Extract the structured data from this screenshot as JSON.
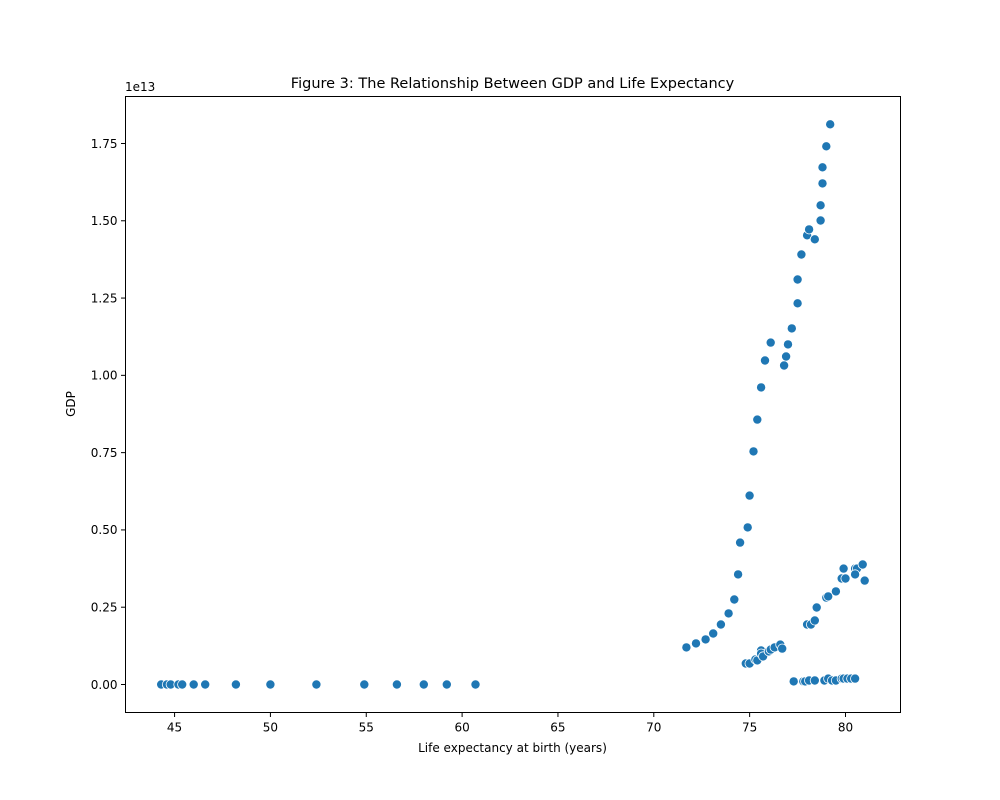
{
  "chart_data": {
    "type": "scatter",
    "title": "Figure 3: The Relationship Between GDP and Life Expectancy",
    "xlabel": "Life expectancy at birth (years)",
    "ylabel": "GDP",
    "y_offset_label": "1e13",
    "y_scale": 10000000000000.0,
    "xlim": [
      42.44,
      82.87
    ],
    "ylim": [
      -0.0906,
      1.902
    ],
    "x_ticks": [
      45,
      50,
      55,
      60,
      65,
      70,
      75,
      80
    ],
    "y_ticks": [
      0.0,
      0.25,
      0.5,
      0.75,
      1.0,
      1.25,
      1.5,
      1.75
    ],
    "y_tick_labels": [
      "0.00",
      "0.25",
      "0.50",
      "0.75",
      "1.00",
      "1.25",
      "1.50",
      "1.75"
    ],
    "grid": false,
    "legend": null,
    "marker_color": "#1f77b4",
    "marker_edge": "#ffffff",
    "points_note": "y values in units of 1e13",
    "points": [
      [
        44.3,
        0.0
      ],
      [
        44.6,
        0.0
      ],
      [
        44.8,
        0.0
      ],
      [
        45.2,
        0.0
      ],
      [
        45.4,
        0.0
      ],
      [
        46.0,
        0.0
      ],
      [
        46.6,
        0.0
      ],
      [
        48.2,
        0.0
      ],
      [
        50.0,
        0.0
      ],
      [
        52.4,
        0.0
      ],
      [
        54.9,
        0.0
      ],
      [
        56.6,
        0.0
      ],
      [
        58.0,
        0.0
      ],
      [
        59.2,
        0.0
      ],
      [
        60.7,
        0.0
      ],
      [
        71.7,
        0.12
      ],
      [
        72.2,
        0.133
      ],
      [
        72.7,
        0.146
      ],
      [
        73.1,
        0.165
      ],
      [
        73.5,
        0.194
      ],
      [
        73.9,
        0.23
      ],
      [
        74.2,
        0.275
      ],
      [
        74.4,
        0.356
      ],
      [
        74.5,
        0.459
      ],
      [
        74.9,
        0.508
      ],
      [
        75.0,
        0.611
      ],
      [
        75.2,
        0.754
      ],
      [
        75.4,
        0.857
      ],
      [
        75.6,
        0.961
      ],
      [
        75.8,
        1.048
      ],
      [
        76.1,
        1.106
      ],
      [
        76.8,
        1.032
      ],
      [
        76.9,
        1.061
      ],
      [
        77.0,
        1.1
      ],
      [
        77.2,
        1.152
      ],
      [
        77.5,
        1.233
      ],
      [
        77.5,
        1.31
      ],
      [
        77.7,
        1.391
      ],
      [
        78.0,
        1.453
      ],
      [
        78.1,
        1.472
      ],
      [
        78.4,
        1.44
      ],
      [
        78.7,
        1.501
      ],
      [
        78.7,
        1.55
      ],
      [
        78.8,
        1.621
      ],
      [
        78.8,
        1.673
      ],
      [
        79.0,
        1.741
      ],
      [
        79.2,
        1.812
      ],
      [
        78.0,
        0.194
      ],
      [
        78.2,
        0.194
      ],
      [
        78.4,
        0.207
      ],
      [
        78.5,
        0.249
      ],
      [
        79.0,
        0.281
      ],
      [
        79.1,
        0.285
      ],
      [
        79.5,
        0.301
      ],
      [
        79.8,
        0.343
      ],
      [
        80.0,
        0.343
      ],
      [
        79.9,
        0.375
      ],
      [
        80.5,
        0.375
      ],
      [
        80.6,
        0.375
      ],
      [
        80.5,
        0.356
      ],
      [
        80.9,
        0.388
      ],
      [
        81.0,
        0.336
      ],
      [
        74.8,
        0.068
      ],
      [
        75.0,
        0.068
      ],
      [
        75.3,
        0.081
      ],
      [
        75.4,
        0.078
      ],
      [
        75.6,
        0.11
      ],
      [
        75.6,
        0.1
      ],
      [
        75.7,
        0.091
      ],
      [
        76.0,
        0.107
      ],
      [
        76.1,
        0.113
      ],
      [
        76.3,
        0.12
      ],
      [
        76.6,
        0.129
      ],
      [
        76.7,
        0.116
      ],
      [
        77.3,
        0.01
      ],
      [
        77.8,
        0.01
      ],
      [
        77.9,
        0.01
      ],
      [
        78.1,
        0.013
      ],
      [
        78.4,
        0.013
      ],
      [
        78.9,
        0.013
      ],
      [
        79.1,
        0.019
      ],
      [
        79.3,
        0.013
      ],
      [
        79.5,
        0.013
      ],
      [
        79.8,
        0.019
      ],
      [
        79.9,
        0.019
      ],
      [
        80.1,
        0.019
      ],
      [
        80.3,
        0.019
      ],
      [
        80.5,
        0.019
      ]
    ]
  },
  "figure": {
    "title": "Figure 3: The Relationship Between GDP and Life Expectancy",
    "xlabel": "Life expectancy at birth (years)",
    "ylabel": "GDP",
    "y_offset_label": "1e13"
  }
}
